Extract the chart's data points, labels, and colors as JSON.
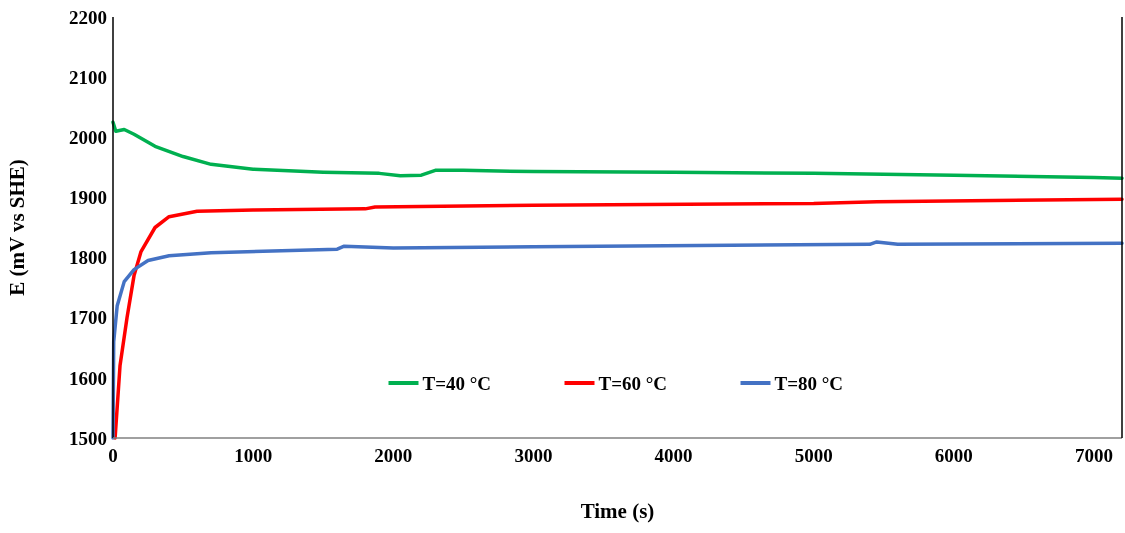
{
  "chart_data": {
    "type": "line",
    "xlabel": "Time (s)",
    "ylabel": "E (mV vs SHE)",
    "xlim": [
      0,
      7200
    ],
    "xticks": [
      0,
      1000,
      2000,
      3000,
      4000,
      5000,
      6000,
      7000
    ],
    "ylim": [
      1500,
      2200
    ],
    "yticks": [
      1500,
      1600,
      1700,
      1800,
      1900,
      2000,
      2100,
      2200
    ],
    "grid": false,
    "legend": "bottom",
    "marker": "none",
    "line_style": "solid",
    "series": [
      {
        "name": "T=40 °C",
        "color": "#00b050",
        "x": [
          0,
          20,
          80,
          150,
          300,
          500,
          700,
          1000,
          1500,
          1900,
          2050,
          2200,
          2300,
          2500,
          3000,
          4000,
          5000,
          6000,
          7000,
          7200
        ],
        "values": [
          2025,
          2010,
          2013,
          2005,
          1985,
          1968,
          1955,
          1947,
          1942,
          1940,
          1936,
          1937,
          1945,
          1945,
          1943,
          1942,
          1940,
          1937,
          1933,
          1932
        ]
      },
      {
        "name": "T=60 °C",
        "color": "#ff0000",
        "x": [
          15,
          50,
          100,
          150,
          200,
          300,
          400,
          600,
          1000,
          1800,
          1870,
          3000,
          5000,
          5450,
          7200
        ],
        "values": [
          1500,
          1620,
          1700,
          1770,
          1810,
          1850,
          1868,
          1877,
          1879,
          1881,
          1884,
          1887,
          1890,
          1893,
          1897
        ]
      },
      {
        "name": "T=80 °C",
        "color": "#4472c4",
        "x": [
          0,
          5,
          30,
          80,
          150,
          250,
          400,
          700,
          1600,
          1650,
          2000,
          3000,
          5400,
          5450,
          5600,
          7200
        ],
        "values": [
          1500,
          1660,
          1720,
          1760,
          1780,
          1795,
          1803,
          1808,
          1814,
          1819,
          1816,
          1818,
          1822,
          1826,
          1822,
          1824
        ]
      }
    ]
  }
}
